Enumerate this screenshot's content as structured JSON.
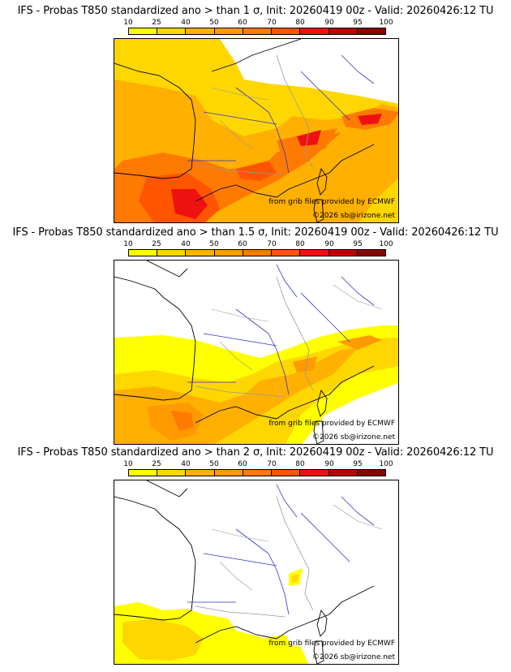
{
  "panels": [
    {
      "title": "IFS - Probas T850  standardized ano > than 1 σ, Init: 20260419 00z - Valid: 20260426:12 TU",
      "source_note": "from grib files provided by ECMWF",
      "copyright": "©2026 sb@irizone.net"
    },
    {
      "title": "IFS - Probas T850  standardized ano > than 1.5 σ, Init: 20260419 00z - Valid: 20260426:12 TU",
      "source_note": "from grib files provided by ECMWF",
      "copyright": "©2026 sb@irizone.net"
    },
    {
      "title": "IFS - Probas T850  standardized ano > than 2 σ, Init: 20260419 00z - Valid: 20260426:12 TU",
      "source_note": "from grib files provided by ECMWF",
      "copyright": "©2026 sb@irizone.net"
    }
  ],
  "scale_labels": [
    "10",
    "25",
    "40",
    "50",
    "60",
    "70",
    "80",
    "90",
    "95",
    "100"
  ],
  "scale_colors": [
    "#ffff00",
    "#ffd700",
    "#ffb000",
    "#ff9a00",
    "#ff7a00",
    "#ff5500",
    "#ee1111",
    "#bb0000",
    "#880000"
  ],
  "map_colors": {
    "coast": "#000000",
    "rivers": "#3333cc",
    "borders": "#999999"
  }
}
